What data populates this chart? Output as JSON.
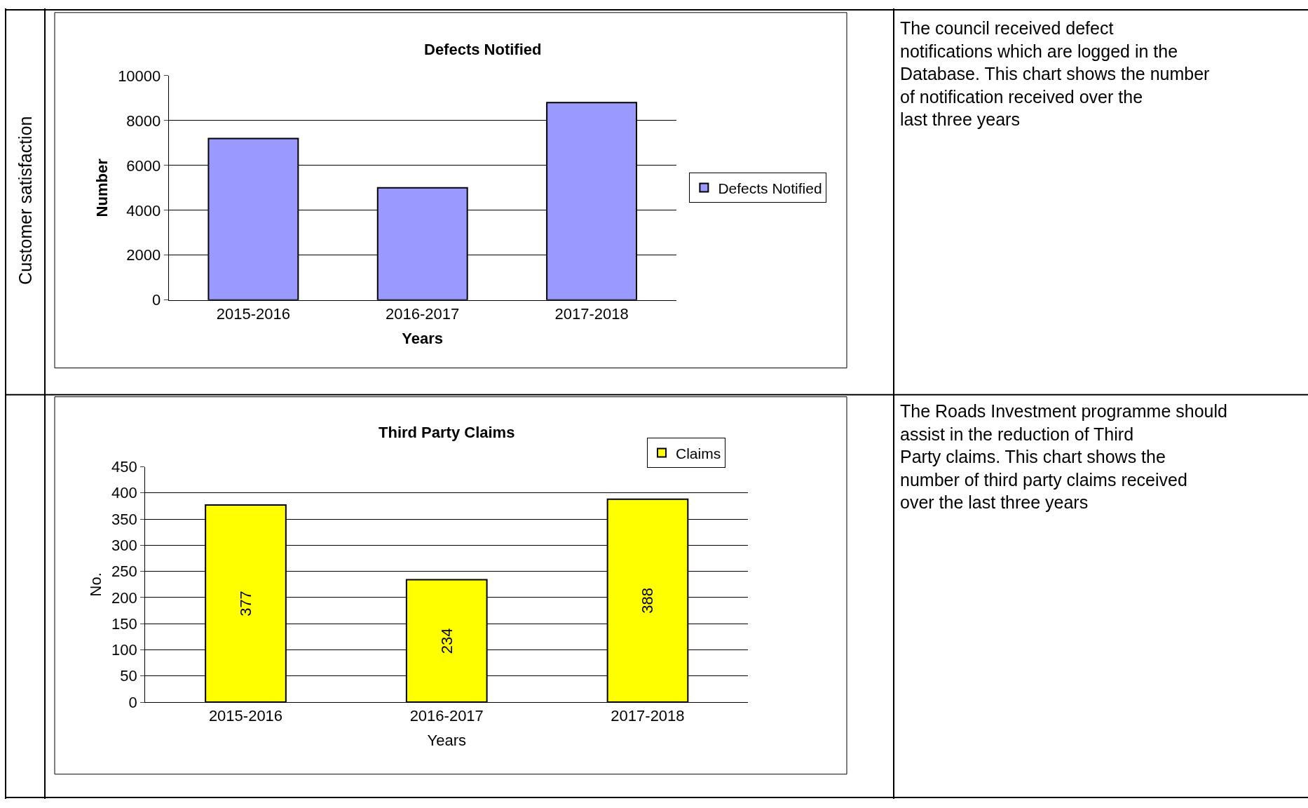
{
  "chart_data": [
    {
      "type": "bar",
      "title": "Defects Notified",
      "xlabel": "Years",
      "ylabel": "Number",
      "categories": [
        "2015-2016",
        "2016-2017",
        "2017-2018"
      ],
      "series": [
        {
          "name": "Defects Notified",
          "color": "#9999ff",
          "values": [
            7200,
            5000,
            8800
          ]
        }
      ],
      "ylim": [
        0,
        10000
      ],
      "yticks": [
        0,
        2000,
        4000,
        6000,
        8000,
        10000
      ],
      "grid": "y",
      "legend": "right",
      "annotations": [
        "The council received defect notifications which are logged in the Database. This chart shows the number of notification received over the last three years",
        "Customer satisfaction"
      ]
    },
    {
      "type": "bar",
      "title": "Third Party Claims",
      "xlabel": "Years",
      "ylabel": "No.",
      "categories": [
        "2015-2016",
        "2016-2017",
        "2017-2018"
      ],
      "series": [
        {
          "name": "Claims",
          "color": "#ffff00",
          "values": [
            377,
            234,
            388
          ]
        }
      ],
      "ylim": [
        0,
        450
      ],
      "yticks": [
        0,
        50,
        100,
        150,
        200,
        250,
        300,
        350,
        400,
        450
      ],
      "grid": "y",
      "legend": "top right",
      "data_labels": true,
      "annotations": [
        "The Roads Investment programme should assist in the reduction of Third Party claims. This chart shows the number of third party claims received over the last three years"
      ]
    }
  ]
}
